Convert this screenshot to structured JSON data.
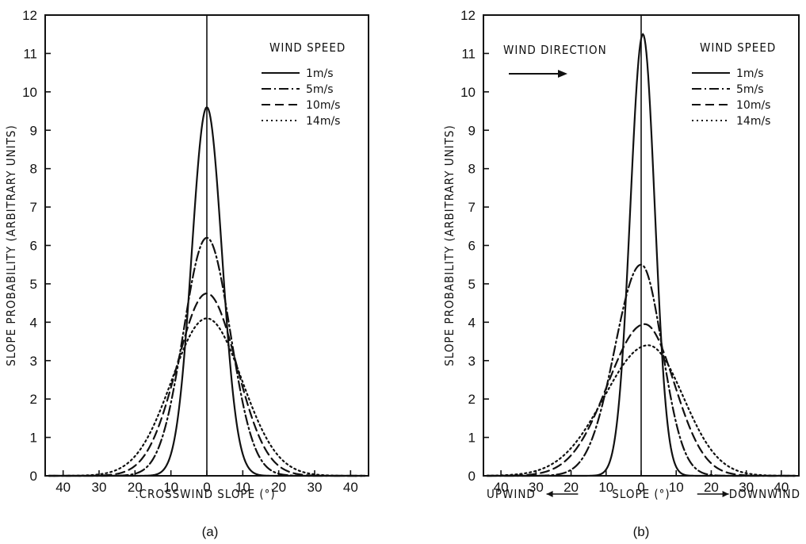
{
  "chart_data": [
    {
      "type": "line",
      "panel_label": "(a)",
      "xlabel": ".CROSSWIND SLOPE (°)",
      "ylabel": "SLOPE PROBABILITY (ARBITRARY UNITS)",
      "xlim": [
        -45,
        45
      ],
      "ylim": [
        0,
        12
      ],
      "x_tick_values": [
        -40,
        -30,
        -20,
        -10,
        0,
        10,
        20,
        30,
        40
      ],
      "x_tick_labels": [
        "40",
        "30",
        "20",
        "10",
        "0",
        "10",
        "20",
        "30",
        "40"
      ],
      "y_ticks": [
        0,
        1,
        2,
        3,
        4,
        5,
        6,
        7,
        8,
        9,
        10,
        11,
        12
      ],
      "legend_title": "WIND SPEED",
      "legend_position": "top-right",
      "series": [
        {
          "name": "1m/s",
          "style": "solid",
          "mean": 0,
          "sigma_left": 4.2,
          "sigma_right": 4.2,
          "peak": 9.6
        },
        {
          "name": "5m/s",
          "style": "dash-dot",
          "mean": 0,
          "sigma_left": 6.5,
          "sigma_right": 6.5,
          "peak": 6.2
        },
        {
          "name": "10m/s",
          "style": "dashed",
          "mean": 0,
          "sigma_left": 8.3,
          "sigma_right": 8.3,
          "peak": 4.75
        },
        {
          "name": "14m/s",
          "style": "dotted",
          "mean": 0,
          "sigma_left": 9.8,
          "sigma_right": 9.8,
          "peak": 4.1
        }
      ]
    },
    {
      "type": "line",
      "panel_label": "(b)",
      "xlabel": "SLOPE (°)",
      "x_left_note": "UPWIND",
      "x_right_note": "DOWNWIND",
      "ylabel": "SLOPE PROBABILITY (ARBITRARY UNITS)",
      "xlim": [
        -45,
        45
      ],
      "ylim": [
        0,
        12
      ],
      "x_tick_values": [
        -40,
        -30,
        -20,
        -10,
        0,
        10,
        20,
        30,
        40
      ],
      "x_tick_labels": [
        "40",
        "30",
        "20",
        "10",
        "0",
        "10",
        "20",
        "30",
        "40"
      ],
      "y_ticks": [
        0,
        1,
        2,
        3,
        4,
        5,
        6,
        7,
        8,
        9,
        10,
        11,
        12
      ],
      "annotation": "WIND DIRECTION",
      "legend_title": "WIND SPEED",
      "legend_position": "top-right",
      "series": [
        {
          "name": "1m/s",
          "style": "solid",
          "mean": 0.5,
          "sigma_left": 3.6,
          "sigma_right": 3.4,
          "peak": 11.5
        },
        {
          "name": "5m/s",
          "style": "dash-dot",
          "mean": 0,
          "sigma_left": 7.5,
          "sigma_right": 6.0,
          "peak": 5.5
        },
        {
          "name": "10m/s",
          "style": "dashed",
          "mean": 1,
          "sigma_left": 10.5,
          "sigma_right": 8.5,
          "peak": 3.95
        },
        {
          "name": "14m/s",
          "style": "dotted",
          "mean": 2,
          "sigma_left": 12.5,
          "sigma_right": 10.0,
          "peak": 3.4
        }
      ]
    }
  ]
}
